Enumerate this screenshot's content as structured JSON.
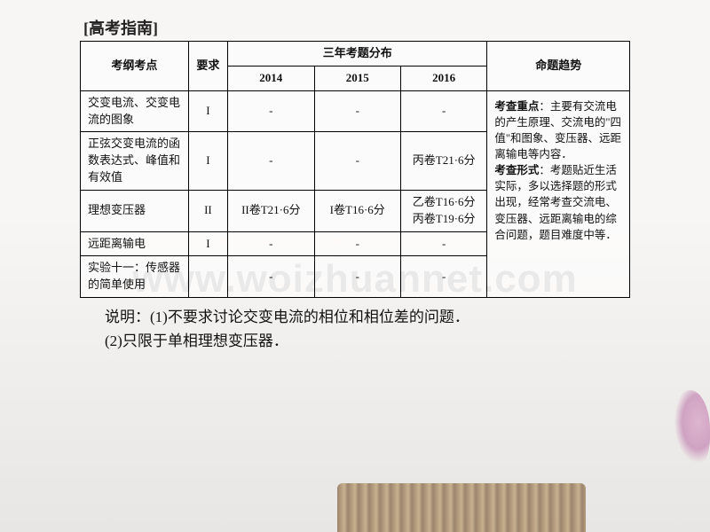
{
  "title": "[高考指南]",
  "headers": {
    "topic": "考纲考点",
    "req": "要求",
    "dist": "三年考题分布",
    "trend": "命题趋势",
    "y2014": "2014",
    "y2015": "2015",
    "y2016": "2016"
  },
  "rows": [
    {
      "topic": "交变电流、交变电流的图象",
      "req": "I",
      "y2014": "-",
      "y2015": "-",
      "y2016": "-"
    },
    {
      "topic": "正弦交变电流的函数表达式、峰值和有效值",
      "req": "I",
      "y2014": "-",
      "y2015": "-",
      "y2016": "丙卷T21·6分"
    },
    {
      "topic": "理想变压器",
      "req": "II",
      "y2014": "II卷T21·6分",
      "y2015": "I卷T16·6分",
      "y2016": "乙卷T16·6分\n丙卷T19·6分"
    },
    {
      "topic": "远距离输电",
      "req": "I",
      "y2014": "-",
      "y2015": "-",
      "y2016": "-"
    },
    {
      "topic": "实验十一：传感器的简单使用",
      "req": "",
      "y2014": "-",
      "y2015": "-",
      "y2016": "-"
    }
  ],
  "trend": {
    "label1": "考查重点",
    "text1": "：主要有交流电的产生原理、交流电的\"四值\"和图象、变压器、远距离输电等内容．",
    "label2": "考查形式",
    "text2": "：考题贴近生活实际，多以选择题的形式出现，经常考查交流电、变压器、远距离输电的综合问题，题目难度中等．"
  },
  "notes": {
    "lead": "说明：",
    "n1": "(1)不要求讨论交变电流的相位和相位差的问题．",
    "n2": "(2)只限于单相理想变压器．"
  },
  "watermark": "www.woizhuannet.com",
  "style": {
    "border_color": "#000000",
    "bg_gradient_top": "#f8f6f4",
    "bg_gradient_bottom": "#e8e6e4",
    "title_fontsize": 18,
    "table_fontsize": 13,
    "notes_fontsize": 17,
    "watermark_color": "rgba(160,160,160,0.5)"
  }
}
